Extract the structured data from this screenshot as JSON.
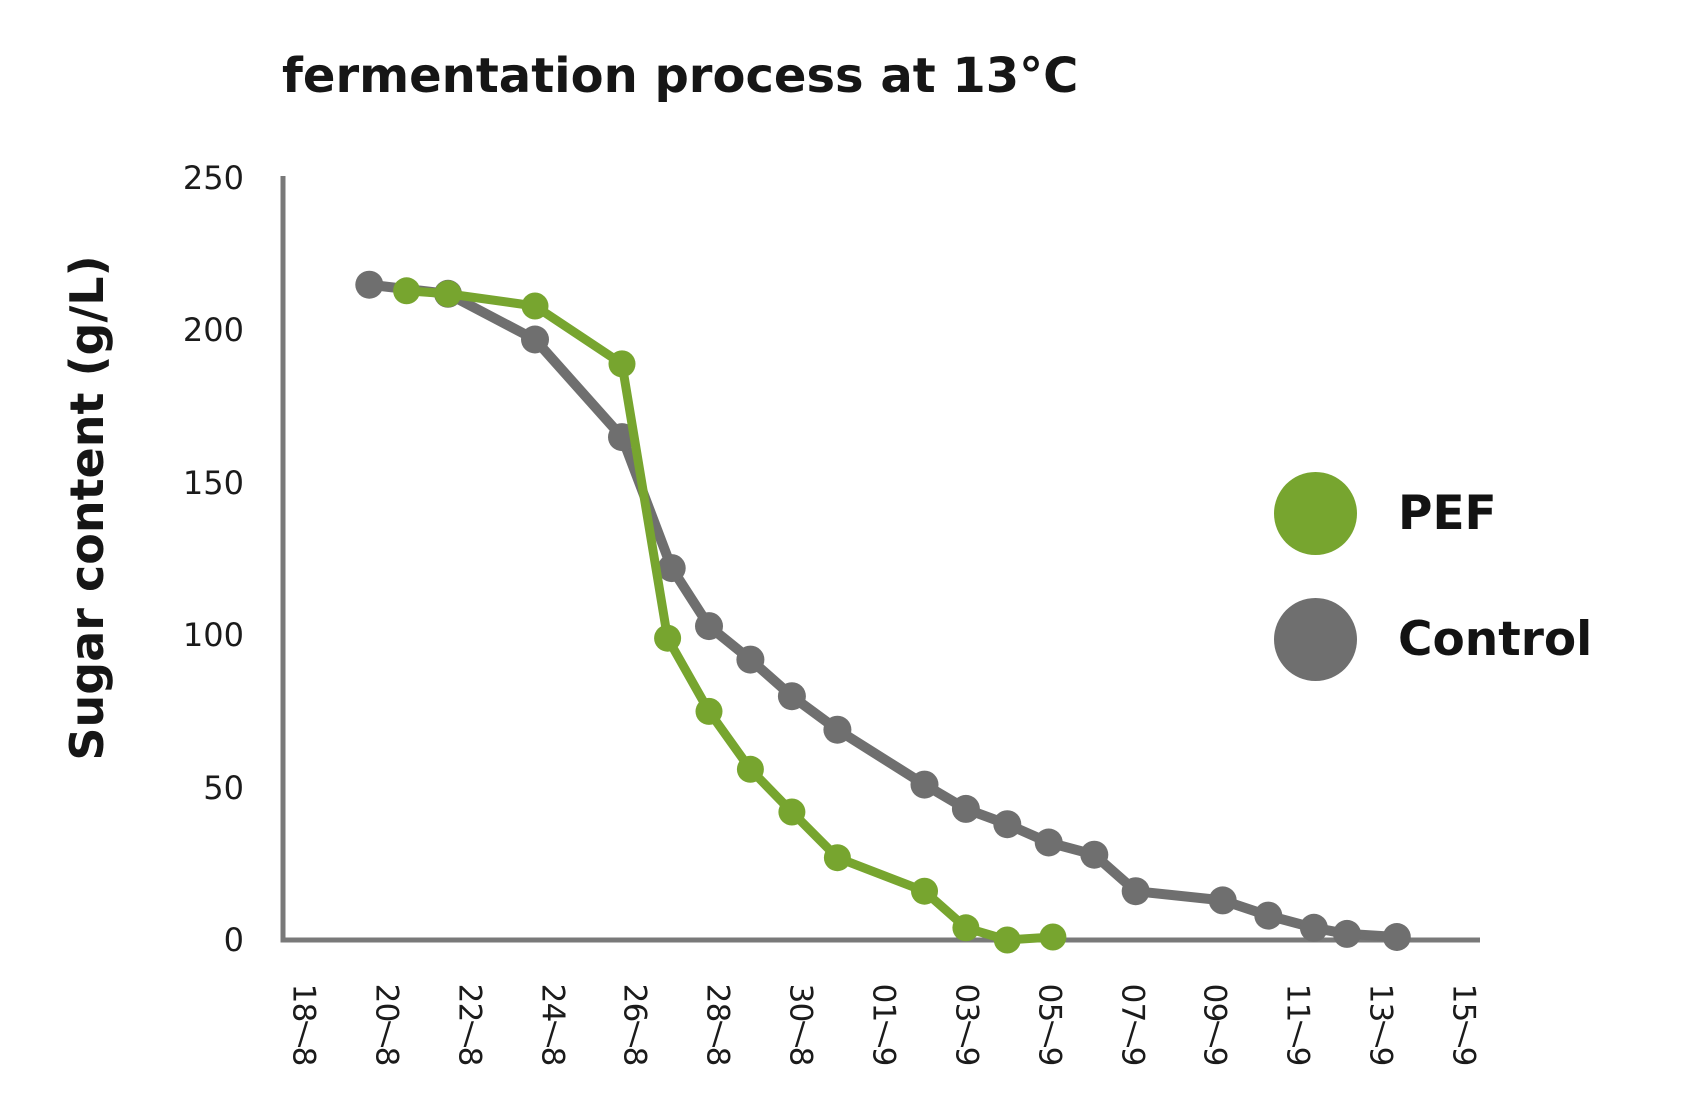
{
  "title": "fermentation process at 13°C",
  "y_axis": {
    "title": "Sugar content (g/L)",
    "tick_values": [
      0,
      50,
      100,
      150,
      200,
      250
    ]
  },
  "x_axis": {
    "tick_labels": [
      "18/8",
      "20/8",
      "22/8",
      "24/8",
      "26/8",
      "28/8",
      "30/8",
      "01/9",
      "03/9",
      "05/9",
      "07/9",
      "09/9",
      "11/9",
      "13/9",
      "15/9"
    ],
    "tick_days": [
      0,
      2,
      4,
      6,
      8,
      10,
      12,
      14,
      16,
      18,
      20,
      22,
      24,
      26,
      28
    ]
  },
  "legend": {
    "items": [
      {
        "label": "PEF",
        "color": "#77a52f"
      },
      {
        "label": "Control",
        "color": "#6f6f6f"
      }
    ]
  },
  "colors": {
    "axis": "#797979",
    "tick_text": "#1b1b1b",
    "pef_green": "#77a52f",
    "control_gray": "#6f6f6f"
  },
  "chart_data": {
    "type": "line",
    "title": "fermentation process at 13°C",
    "xlabel": "",
    "ylabel": "Sugar content (g/L)",
    "ylim": [
      0,
      250
    ],
    "y_ticks": [
      0,
      50,
      100,
      150,
      200,
      250
    ],
    "x_tick_labels": [
      "18/8",
      "20/8",
      "22/8",
      "24/8",
      "26/8",
      "28/8",
      "30/8",
      "01/9",
      "03/9",
      "05/9",
      "07/9",
      "09/9",
      "11/9",
      "13/9",
      "15/9"
    ],
    "x_tick_days": [
      0,
      2,
      4,
      6,
      8,
      10,
      12,
      14,
      16,
      18,
      20,
      22,
      24,
      26,
      28
    ],
    "x_unit": "days after 18/8 (as plotted, fractional)",
    "grid": false,
    "legend_position": "right",
    "marker": "circle",
    "series": [
      {
        "name": "Control",
        "color": "#6f6f6f",
        "line_width": 10,
        "marker_radius": 14,
        "x_days": [
          1.6,
          3.5,
          5.6,
          7.7,
          8.9,
          9.8,
          10.8,
          11.8,
          12.9,
          15.0,
          16.0,
          17.0,
          18.0,
          19.1,
          20.1,
          22.2,
          23.3,
          24.4,
          25.2,
          26.4
        ],
        "values": [
          215,
          212,
          197,
          165,
          122,
          103,
          92,
          80,
          69,
          51,
          43,
          38,
          32,
          28,
          16,
          13,
          8,
          4,
          2,
          1
        ]
      },
      {
        "name": "PEF",
        "color": "#77a52f",
        "line_width": 9,
        "marker_radius": 13.5,
        "x_days": [
          2.5,
          3.5,
          5.6,
          7.7,
          8.8,
          9.8,
          10.8,
          11.8,
          12.9,
          15.0,
          16.0,
          17.0,
          18.1
        ],
        "values": [
          213,
          212,
          208,
          189,
          99,
          75,
          56,
          42,
          27,
          16,
          4,
          0,
          1
        ]
      }
    ]
  }
}
